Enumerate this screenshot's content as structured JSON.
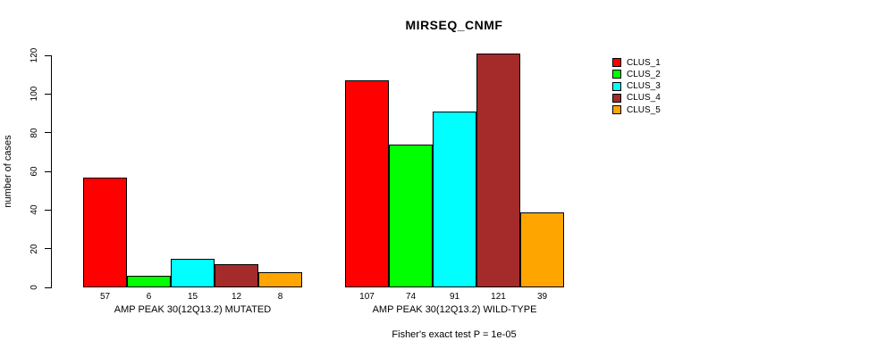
{
  "chart_data": {
    "type": "bar",
    "title": "MIRSEQ_CNMF",
    "ylabel": "number of cases",
    "xlabel": "",
    "caption": "Fisher's exact test P = 1e-05",
    "ylim": [
      0,
      120
    ],
    "yticks": [
      0,
      20,
      40,
      60,
      80,
      100,
      120
    ],
    "grid": false,
    "legend_position": "right-top",
    "categories": [
      "AMP PEAK 30(12Q13.2) MUTATED",
      "AMP PEAK 30(12Q13.2) WILD-TYPE"
    ],
    "series": [
      {
        "name": "CLUS_1",
        "color": "#FF0000",
        "values": [
          57,
          107
        ]
      },
      {
        "name": "CLUS_2",
        "color": "#00FF00",
        "values": [
          6,
          74
        ]
      },
      {
        "name": "CLUS_3",
        "color": "#00FFFF",
        "values": [
          15,
          91
        ]
      },
      {
        "name": "CLUS_4",
        "color": "#A52A2A",
        "values": [
          12,
          121
        ]
      },
      {
        "name": "CLUS_5",
        "color": "#FFA500",
        "values": [
          8,
          39
        ]
      }
    ],
    "bar_value_labels": {
      "group1": [
        "57",
        "6",
        "15",
        "12",
        "8"
      ],
      "group2": [
        "107",
        "74",
        "91",
        "121",
        "39"
      ]
    }
  }
}
